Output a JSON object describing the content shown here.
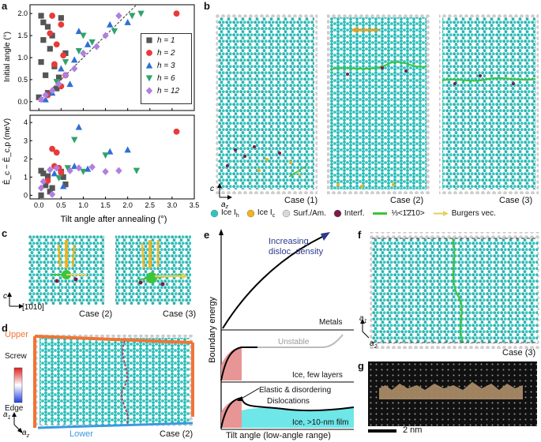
{
  "panels": {
    "a": "a",
    "b": "b",
    "c": "c",
    "d": "d",
    "e": "e",
    "f": "f",
    "g": "g"
  },
  "panel_a": {
    "top_ylabel": "Initial angle (°)",
    "bottom_ylabel": "Ē_c − Ē_c,p (meV)",
    "xlabel": "Tilt angle after annealing (°)",
    "xticks": [
      "0.0",
      "0.5",
      "1.0",
      "1.5",
      "2.0",
      "2.5",
      "3.0",
      "3.5"
    ],
    "top_yticks": [
      "0.0",
      "0.5",
      "1.0",
      "1.5",
      "2.0"
    ],
    "bottom_yticks": [
      "0",
      "1",
      "2",
      "3",
      "4"
    ],
    "legend": [
      {
        "label": "h = 1",
        "color": "#555555",
        "marker": "square"
      },
      {
        "label": "h = 2",
        "color": "#e83a3a",
        "marker": "circle"
      },
      {
        "label": "h = 3",
        "color": "#2f6fd6",
        "marker": "triangle-up"
      },
      {
        "label": "h = 6",
        "color": "#2fa36a",
        "marker": "triangle-down"
      },
      {
        "label": "h = 12",
        "color": "#b07fe0",
        "marker": "diamond"
      }
    ]
  },
  "chart_data": [
    {
      "type": "scatter",
      "title": "Initial angle vs tilt angle after annealing",
      "xlabel": "Tilt angle after annealing (°)",
      "ylabel": "Initial angle (°)",
      "xlim": [
        -0.2,
        3.5
      ],
      "ylim": [
        -0.2,
        2.2
      ],
      "series": [
        {
          "name": "h = 1",
          "points": [
            [
              0.05,
              1.95
            ],
            [
              0.1,
              1.8
            ],
            [
              0.2,
              1.7
            ],
            [
              0.3,
              1.5
            ],
            [
              0.1,
              1.4
            ],
            [
              0.25,
              1.2
            ],
            [
              0.05,
              0.9
            ],
            [
              0.15,
              0.6
            ],
            [
              0.35,
              0.8
            ],
            [
              0.4,
              0.3
            ],
            [
              0.0,
              0.1
            ],
            [
              0.5,
              1.9
            ],
            [
              0.6,
              1.1
            ],
            [
              0.45,
              0.55
            ],
            [
              0.2,
              0.2
            ]
          ]
        },
        {
          "name": "h = 2",
          "points": [
            [
              0.3,
              1.95
            ],
            [
              0.5,
              1.75
            ],
            [
              0.25,
              1.55
            ],
            [
              0.4,
              1.3
            ],
            [
              0.55,
              1.05
            ],
            [
              0.35,
              0.85
            ],
            [
              0.6,
              0.6
            ],
            [
              0.5,
              0.35
            ],
            [
              0.2,
              0.15
            ],
            [
              3.1,
              2.0
            ]
          ]
        },
        {
          "name": "h = 3",
          "points": [
            [
              0.9,
              1.6
            ],
            [
              1.6,
              1.75
            ],
            [
              2.0,
              1.8
            ],
            [
              0.8,
              0.95
            ],
            [
              0.5,
              0.75
            ],
            [
              0.7,
              0.4
            ],
            [
              1.1,
              1.3
            ],
            [
              0.3,
              0.2
            ],
            [
              0.15,
              0.05
            ]
          ]
        },
        {
          "name": "h = 6",
          "points": [
            [
              1.0,
              1.5
            ],
            [
              1.7,
              1.6
            ],
            [
              2.3,
              2.0
            ],
            [
              2.1,
              1.95
            ],
            [
              0.9,
              1.15
            ],
            [
              0.6,
              0.9
            ],
            [
              1.2,
              1.35
            ],
            [
              0.4,
              0.45
            ]
          ]
        },
        {
          "name": "h = 12",
          "points": [
            [
              1.8,
              1.95
            ],
            [
              1.5,
              1.5
            ],
            [
              1.3,
              1.25
            ],
            [
              1.0,
              1.1
            ],
            [
              0.8,
              0.75
            ],
            [
              0.6,
              0.6
            ],
            [
              0.45,
              0.4
            ],
            [
              0.3,
              0.25
            ],
            [
              0.15,
              0.15
            ],
            [
              0.05,
              0.05
            ]
          ]
        }
      ]
    },
    {
      "type": "scatter",
      "title": "Energy difference vs tilt angle after annealing",
      "xlabel": "Tilt angle after annealing (°)",
      "ylabel": "Ē_c − Ē_c,p (meV)",
      "xlim": [
        -0.2,
        3.5
      ],
      "ylim": [
        -0.2,
        4.4
      ],
      "series": [
        {
          "name": "h = 1",
          "points": [
            [
              0.05,
              1.35
            ],
            [
              0.1,
              1.2
            ],
            [
              0.2,
              1.05
            ],
            [
              0.15,
              0.55
            ],
            [
              0.3,
              0.4
            ],
            [
              0.5,
              1.3
            ],
            [
              0.55,
              1.0
            ],
            [
              0.05,
              0.0
            ],
            [
              0.6,
              0.6
            ],
            [
              0.25,
              0.2
            ]
          ]
        },
        {
          "name": "h = 2",
          "points": [
            [
              0.3,
              2.55
            ],
            [
              0.4,
              2.35
            ],
            [
              0.35,
              1.6
            ],
            [
              0.45,
              1.5
            ],
            [
              0.5,
              1.25
            ],
            [
              0.2,
              0.8
            ],
            [
              3.1,
              3.5
            ]
          ]
        },
        {
          "name": "h = 3",
          "points": [
            [
              0.9,
              3.75
            ],
            [
              1.6,
              2.4
            ],
            [
              2.0,
              2.5
            ],
            [
              0.8,
              1.6
            ],
            [
              0.55,
              0.5
            ],
            [
              1.1,
              1.45
            ],
            [
              0.35,
              1.2
            ]
          ]
        },
        {
          "name": "h = 6",
          "points": [
            [
              0.8,
              3.05
            ],
            [
              1.5,
              2.2
            ],
            [
              2.2,
              1.35
            ],
            [
              1.0,
              1.3
            ],
            [
              0.65,
              1.5
            ],
            [
              0.45,
              0.95
            ]
          ]
        },
        {
          "name": "h = 12",
          "points": [
            [
              1.8,
              1.35
            ],
            [
              1.5,
              1.3
            ],
            [
              1.2,
              1.55
            ],
            [
              0.9,
              1.5
            ],
            [
              0.7,
              1.35
            ],
            [
              0.4,
              1.5
            ],
            [
              0.25,
              1.4
            ],
            [
              0.1,
              0.75
            ],
            [
              0.05,
              0.4
            ],
            [
              0.3,
              0.05
            ]
          ]
        }
      ]
    }
  ],
  "panel_b": {
    "cases": [
      "Case (1)",
      "Case (2)",
      "Case (3)"
    ],
    "axis_c": "c",
    "axis_a": "a",
    "axis_a_sub": "z",
    "legend": [
      {
        "label": "Ice I",
        "sub": "h",
        "color": "#2ec4c0",
        "shape": "circle"
      },
      {
        "label": "Ice I",
        "sub": "c",
        "color": "#f2b21a",
        "shape": "circle"
      },
      {
        "label": "Surf./Am.",
        "color": "#d8d8d8",
        "shape": "circle"
      },
      {
        "label": "Interf.",
        "color": "#7a1b4a",
        "shape": "circle"
      },
      {
        "label": "⅓<1̄2̄10>",
        "color": "#3cc43a",
        "shape": "line"
      },
      {
        "label": "Burgers vec.",
        "color": "#e6cf60",
        "shape": "arrow"
      }
    ]
  },
  "panel_c": {
    "cases": [
      "Case (2)",
      "Case (3)"
    ],
    "axis_c": "c",
    "axis_dir": "[1̄010]"
  },
  "panel_d": {
    "upper": "Upper",
    "lower": "Lower",
    "case": "Case (2)",
    "scale_title": "Screw",
    "scale_bottom": "Edge",
    "axis_a1": "a",
    "axis_a1_sub": "1",
    "axis_a2": "a",
    "axis_a2_sub": "z",
    "upper_color": "#f07535",
    "lower_color": "#3a9ae0"
  },
  "panel_e": {
    "ylabel": "Boundary energy",
    "xlabel": "Tilt angle (low-angle range)",
    "top_text_line1": "Increasing",
    "top_text_line2": "disloc. density",
    "metals": "Metals",
    "unstable": "Unstable",
    "few_layers": "Ice, few layers",
    "elastic": "Elastic & disordering",
    "dislocations": "Dislocations",
    "film": "Ice, >10-nm film"
  },
  "panel_f": {
    "case": "Case (3)",
    "axis_a1": "a",
    "axis_a1_sub": "1",
    "axis_a2": "a",
    "axis_a2_sub": "2"
  },
  "panel_g": {
    "scale": "2 nm"
  }
}
